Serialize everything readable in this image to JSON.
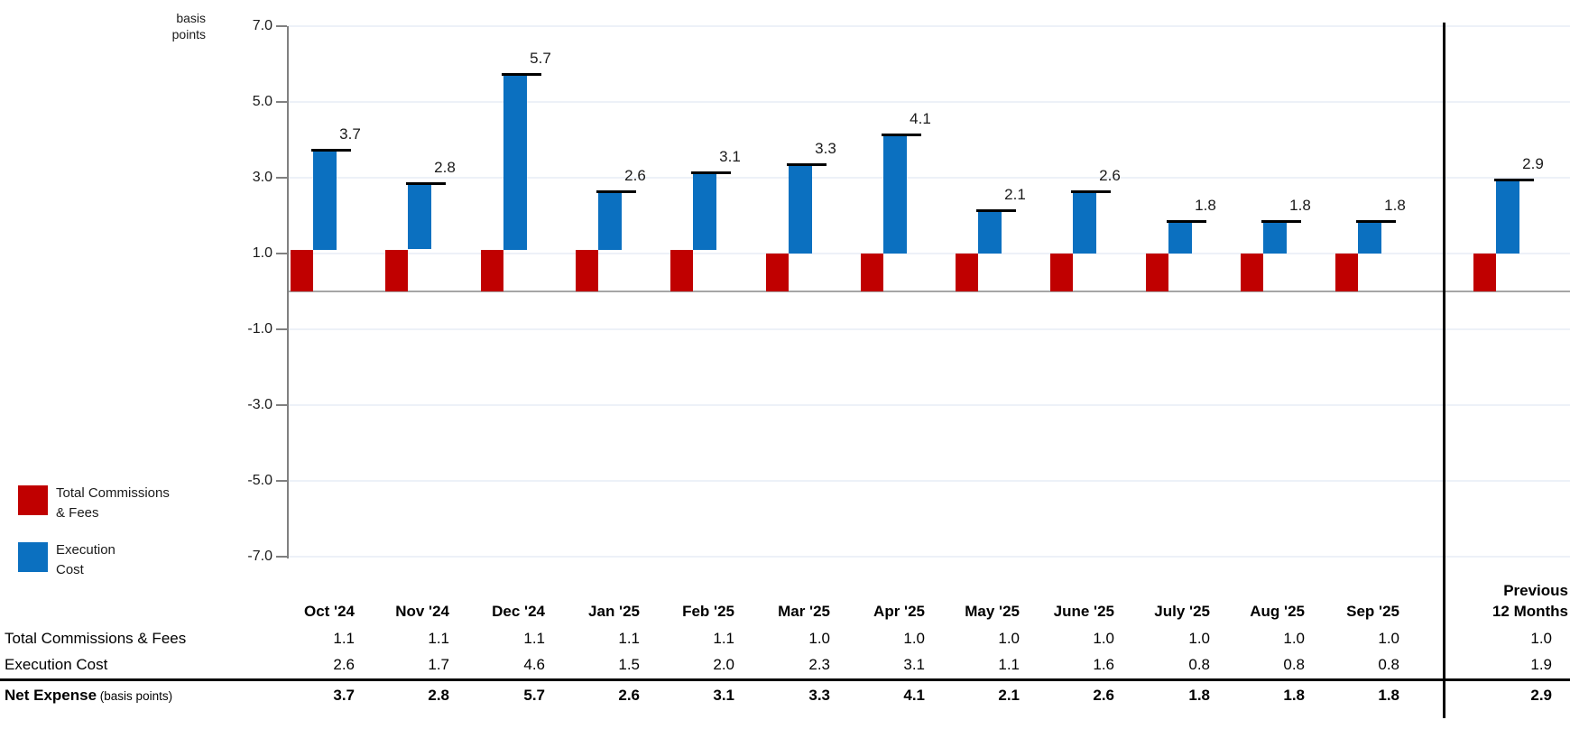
{
  "chart": {
    "axis_title": "basis\npoints"
  },
  "legend": {
    "items": [
      {
        "label": "Total Commissions\n& Fees",
        "color": "#c00000"
      },
      {
        "label": "Execution\nCost",
        "color": "#0b70c0"
      }
    ]
  },
  "chart_data": {
    "type": "bar",
    "stacked": true,
    "title": "",
    "ylabel": "basis points",
    "ylim": [
      -7.0,
      7.0
    ],
    "yticks": [
      7.0,
      5.0,
      3.0,
      1.0,
      -1.0,
      -3.0,
      -5.0,
      -7.0
    ],
    "grid": true,
    "legend_position": "bottom-left",
    "categories": [
      "Oct '24",
      "Nov '24",
      "Dec '24",
      "Jan '25",
      "Feb '25",
      "Mar '25",
      "Apr '25",
      "May '25",
      "June '25",
      "July '25",
      "Aug '25",
      "Sep '25"
    ],
    "previous_category": "Previous\n12 Months",
    "series": [
      {
        "name": "Total Commissions & Fees",
        "color": "#c00000",
        "values": [
          1.1,
          1.1,
          1.1,
          1.1,
          1.1,
          1.0,
          1.0,
          1.0,
          1.0,
          1.0,
          1.0,
          1.0
        ],
        "previous_value": 1.0
      },
      {
        "name": "Execution Cost",
        "color": "#0b70c0",
        "values": [
          2.6,
          1.7,
          4.6,
          1.5,
          2.0,
          2.3,
          3.1,
          1.1,
          1.6,
          0.8,
          0.8,
          0.8
        ],
        "previous_value": 1.9
      }
    ],
    "totals": [
      3.7,
      2.8,
      5.7,
      2.6,
      3.1,
      3.3,
      4.1,
      2.1,
      2.6,
      1.8,
      1.8,
      1.8
    ],
    "previous_total": 2.9
  },
  "table": {
    "row_labels": [
      "Total Commissions & Fees",
      "Execution Cost"
    ],
    "net_row_label": "Net Expense",
    "net_row_suffix": "(basis points)"
  }
}
